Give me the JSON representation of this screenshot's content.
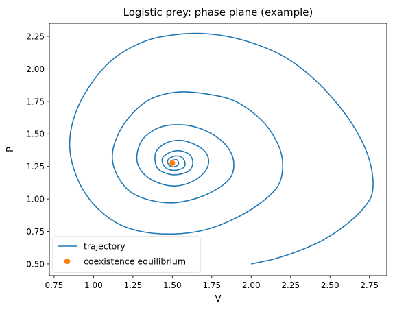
{
  "chart_data": {
    "type": "line",
    "title": "Logistic prey: phase plane (example)",
    "xlabel": "V",
    "ylabel": "P",
    "xlim": [
      0.72,
      2.86
    ],
    "ylim": [
      0.41,
      2.35
    ],
    "xticks": [
      0.75,
      1.0,
      1.25,
      1.5,
      1.75,
      2.0,
      2.25,
      2.5,
      2.75
    ],
    "xtick_labels": [
      "0.75",
      "1.00",
      "1.25",
      "1.50",
      "1.75",
      "2.00",
      "2.25",
      "2.50",
      "2.75"
    ],
    "yticks": [
      0.5,
      0.75,
      1.0,
      1.25,
      1.5,
      1.75,
      2.0,
      2.25
    ],
    "ytick_labels": [
      "0.50",
      "0.75",
      "1.00",
      "1.25",
      "1.50",
      "1.75",
      "2.00",
      "2.25"
    ],
    "grid": false,
    "legend": {
      "position": "lower-left",
      "entries": [
        {
          "label": "trajectory",
          "kind": "line",
          "color": "#1f77b4"
        },
        {
          "label": "coexistence equilibrium",
          "kind": "marker",
          "color": "#ff7f0e"
        }
      ]
    },
    "series": [
      {
        "name": "trajectory",
        "kind": "line",
        "color": "#1f77b4",
        "points": [
          [
            2.0,
            0.5
          ],
          [
            2.15,
            0.54
          ],
          [
            2.3,
            0.6
          ],
          [
            2.45,
            0.68
          ],
          [
            2.6,
            0.8
          ],
          [
            2.72,
            0.94
          ],
          [
            2.77,
            1.06
          ],
          [
            2.76,
            1.25
          ],
          [
            2.7,
            1.45
          ],
          [
            2.58,
            1.68
          ],
          [
            2.4,
            1.92
          ],
          [
            2.2,
            2.1
          ],
          [
            1.95,
            2.22
          ],
          [
            1.72,
            2.27
          ],
          [
            1.5,
            2.26
          ],
          [
            1.3,
            2.2
          ],
          [
            1.1,
            2.05
          ],
          [
            0.95,
            1.82
          ],
          [
            0.87,
            1.6
          ],
          [
            0.85,
            1.38
          ],
          [
            0.9,
            1.15
          ],
          [
            1.0,
            0.96
          ],
          [
            1.14,
            0.82
          ],
          [
            1.3,
            0.75
          ],
          [
            1.5,
            0.73
          ],
          [
            1.7,
            0.76
          ],
          [
            1.88,
            0.84
          ],
          [
            2.05,
            0.96
          ],
          [
            2.17,
            1.1
          ],
          [
            2.2,
            1.26
          ],
          [
            2.17,
            1.42
          ],
          [
            2.07,
            1.6
          ],
          [
            1.9,
            1.75
          ],
          [
            1.7,
            1.81
          ],
          [
            1.52,
            1.82
          ],
          [
            1.35,
            1.76
          ],
          [
            1.22,
            1.62
          ],
          [
            1.14,
            1.45
          ],
          [
            1.12,
            1.3
          ],
          [
            1.16,
            1.16
          ],
          [
            1.24,
            1.05
          ],
          [
            1.36,
            0.99
          ],
          [
            1.5,
            0.97
          ],
          [
            1.64,
            1.0
          ],
          [
            1.76,
            1.06
          ],
          [
            1.86,
            1.15
          ],
          [
            1.89,
            1.25
          ],
          [
            1.87,
            1.36
          ],
          [
            1.8,
            1.46
          ],
          [
            1.68,
            1.54
          ],
          [
            1.55,
            1.57
          ],
          [
            1.42,
            1.55
          ],
          [
            1.32,
            1.47
          ],
          [
            1.28,
            1.37
          ],
          [
            1.28,
            1.27
          ],
          [
            1.33,
            1.18
          ],
          [
            1.42,
            1.12
          ],
          [
            1.52,
            1.1
          ],
          [
            1.62,
            1.13
          ],
          [
            1.7,
            1.2
          ],
          [
            1.73,
            1.28
          ],
          [
            1.71,
            1.36
          ],
          [
            1.64,
            1.42
          ],
          [
            1.55,
            1.45
          ],
          [
            1.46,
            1.43
          ],
          [
            1.4,
            1.37
          ],
          [
            1.39,
            1.3
          ],
          [
            1.41,
            1.23
          ],
          [
            1.48,
            1.19
          ],
          [
            1.55,
            1.19
          ],
          [
            1.61,
            1.22
          ],
          [
            1.63,
            1.28
          ],
          [
            1.61,
            1.34
          ],
          [
            1.55,
            1.37
          ],
          [
            1.49,
            1.36
          ],
          [
            1.44,
            1.32
          ],
          [
            1.44,
            1.27
          ],
          [
            1.47,
            1.23
          ],
          [
            1.52,
            1.22
          ],
          [
            1.57,
            1.24
          ],
          [
            1.58,
            1.28
          ],
          [
            1.56,
            1.32
          ],
          [
            1.52,
            1.33
          ],
          [
            1.48,
            1.31
          ],
          [
            1.47,
            1.28
          ],
          [
            1.49,
            1.25
          ],
          [
            1.52,
            1.25
          ],
          [
            1.54,
            1.27
          ],
          [
            1.53,
            1.3
          ],
          [
            1.51,
            1.3
          ],
          [
            1.49,
            1.29
          ],
          [
            1.5,
            1.27
          ],
          [
            1.51,
            1.27
          ],
          [
            1.5,
            1.28
          ]
        ]
      },
      {
        "name": "coexistence equilibrium",
        "kind": "marker",
        "color": "#ff7f0e",
        "points": [
          [
            1.5,
            1.275
          ]
        ]
      }
    ]
  }
}
